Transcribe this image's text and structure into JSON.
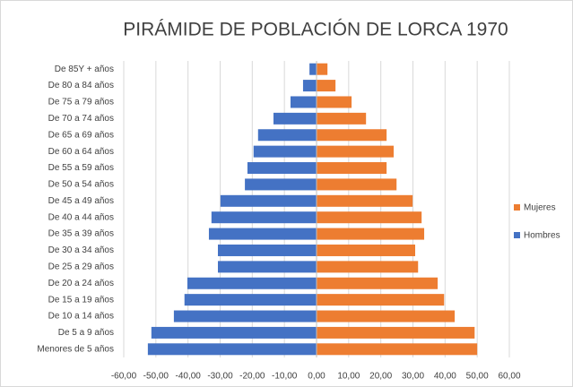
{
  "chart_data": {
    "type": "bar",
    "orientation": "horizontal",
    "stacked": true,
    "title": "PIRÁMIDE DE POBLACIÓN DE LORCA 1970",
    "categories": [
      "De 85Y + años",
      "De 80 a 84 años",
      "De 75 a 79 años",
      "De 70 a 74 años",
      "De 65 a 69 años",
      "De 60 a 64 años",
      "De 55 a 59 años",
      "De 50 a 54 años",
      "De 45 a 49 años",
      "De 40 a 44 años",
      "De 35 a 39 años",
      "De 30 a 34 años",
      "De 25 a 29 años",
      "De 20 a 24 años",
      "De 15 a 19 años",
      "De 10 a 14 años",
      "De 5 a 9 años",
      "Menores de 5 años"
    ],
    "series": [
      {
        "name": "Mujeres",
        "color": "#ed7d31",
        "values": [
          3.4,
          5.9,
          10.9,
          15.4,
          21.8,
          24.0,
          21.8,
          24.9,
          29.9,
          32.7,
          33.5,
          30.7,
          31.6,
          37.7,
          39.7,
          43.0,
          49.2,
          50.0
        ]
      },
      {
        "name": "Hombres",
        "color": "#4472c4",
        "values": [
          -2.2,
          -4.2,
          -8.1,
          -13.4,
          -18.2,
          -19.6,
          -21.5,
          -22.3,
          -29.9,
          -32.7,
          -33.5,
          -30.7,
          -30.7,
          -40.2,
          -41.1,
          -44.4,
          -51.4,
          -52.5
        ]
      }
    ],
    "xlim": [
      -60,
      60
    ],
    "xticks": [
      {
        "value": -60,
        "label": "-60,00"
      },
      {
        "value": -50,
        "label": "-50,00"
      },
      {
        "value": -40,
        "label": "-40,00"
      },
      {
        "value": -30,
        "label": "-30,00"
      },
      {
        "value": -20,
        "label": "-20,00"
      },
      {
        "value": -10,
        "label": "-10,00"
      },
      {
        "value": 0,
        "label": "0,00"
      },
      {
        "value": 10,
        "label": "10,00"
      },
      {
        "value": 20,
        "label": "20,00"
      },
      {
        "value": 30,
        "label": "30,00"
      },
      {
        "value": 40,
        "label": "40,00"
      },
      {
        "value": 50,
        "label": "50,00"
      },
      {
        "value": 60,
        "label": "60,00"
      }
    ],
    "grid": true,
    "legend": "right"
  }
}
